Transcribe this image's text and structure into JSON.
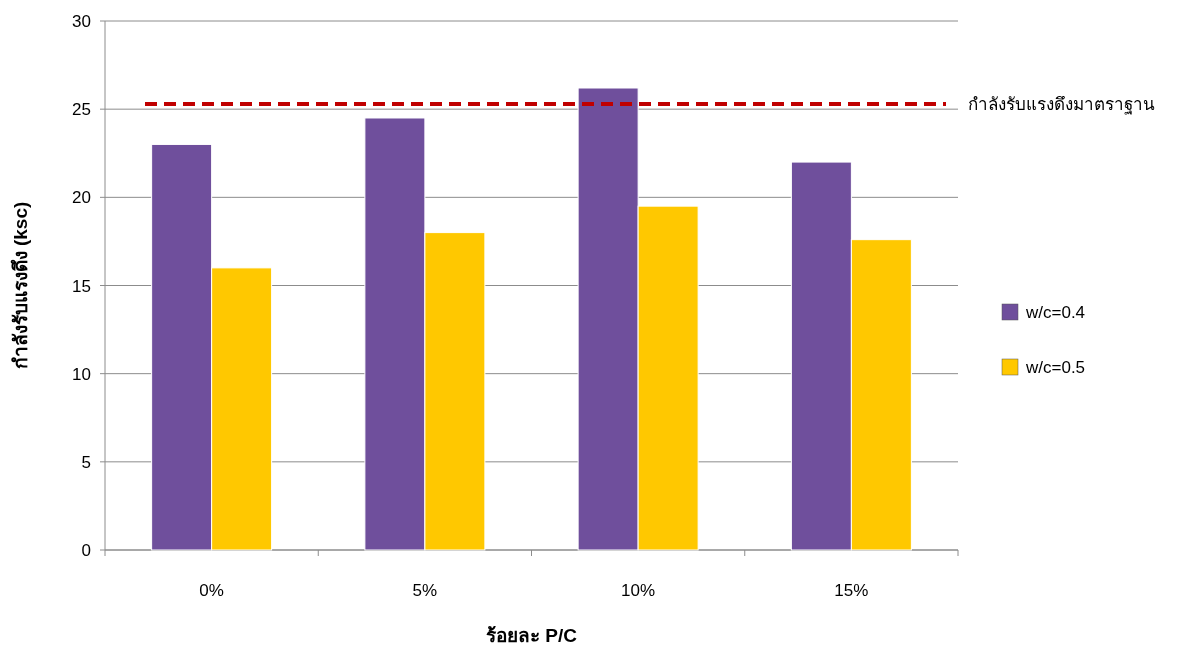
{
  "chart_data": {
    "type": "bar",
    "xlabel": "ร้อยละ P/C",
    "ylabel": "กำลังรับแรงดึง (ksc)",
    "categories": [
      "0%",
      "5%",
      "10%",
      "15%"
    ],
    "series": [
      {
        "name": "w/c=0.4",
        "color": "#6f4f9c",
        "values": [
          23,
          24.5,
          26.2,
          22
        ]
      },
      {
        "name": "w/c=0.5",
        "color": "#ffc800",
        "values": [
          16,
          18,
          19.5,
          17.6
        ]
      }
    ],
    "ylim": [
      0,
      30
    ],
    "yticks": [
      0,
      5,
      10,
      15,
      20,
      25,
      30
    ],
    "grid": "y",
    "legend": "right",
    "ref_lines": [
      {
        "axis": "y",
        "value": 25.3,
        "label": "กำลังรับแรงดึงมาตราฐาน",
        "color": "#c00000",
        "line_style": "dashed"
      }
    ]
  }
}
